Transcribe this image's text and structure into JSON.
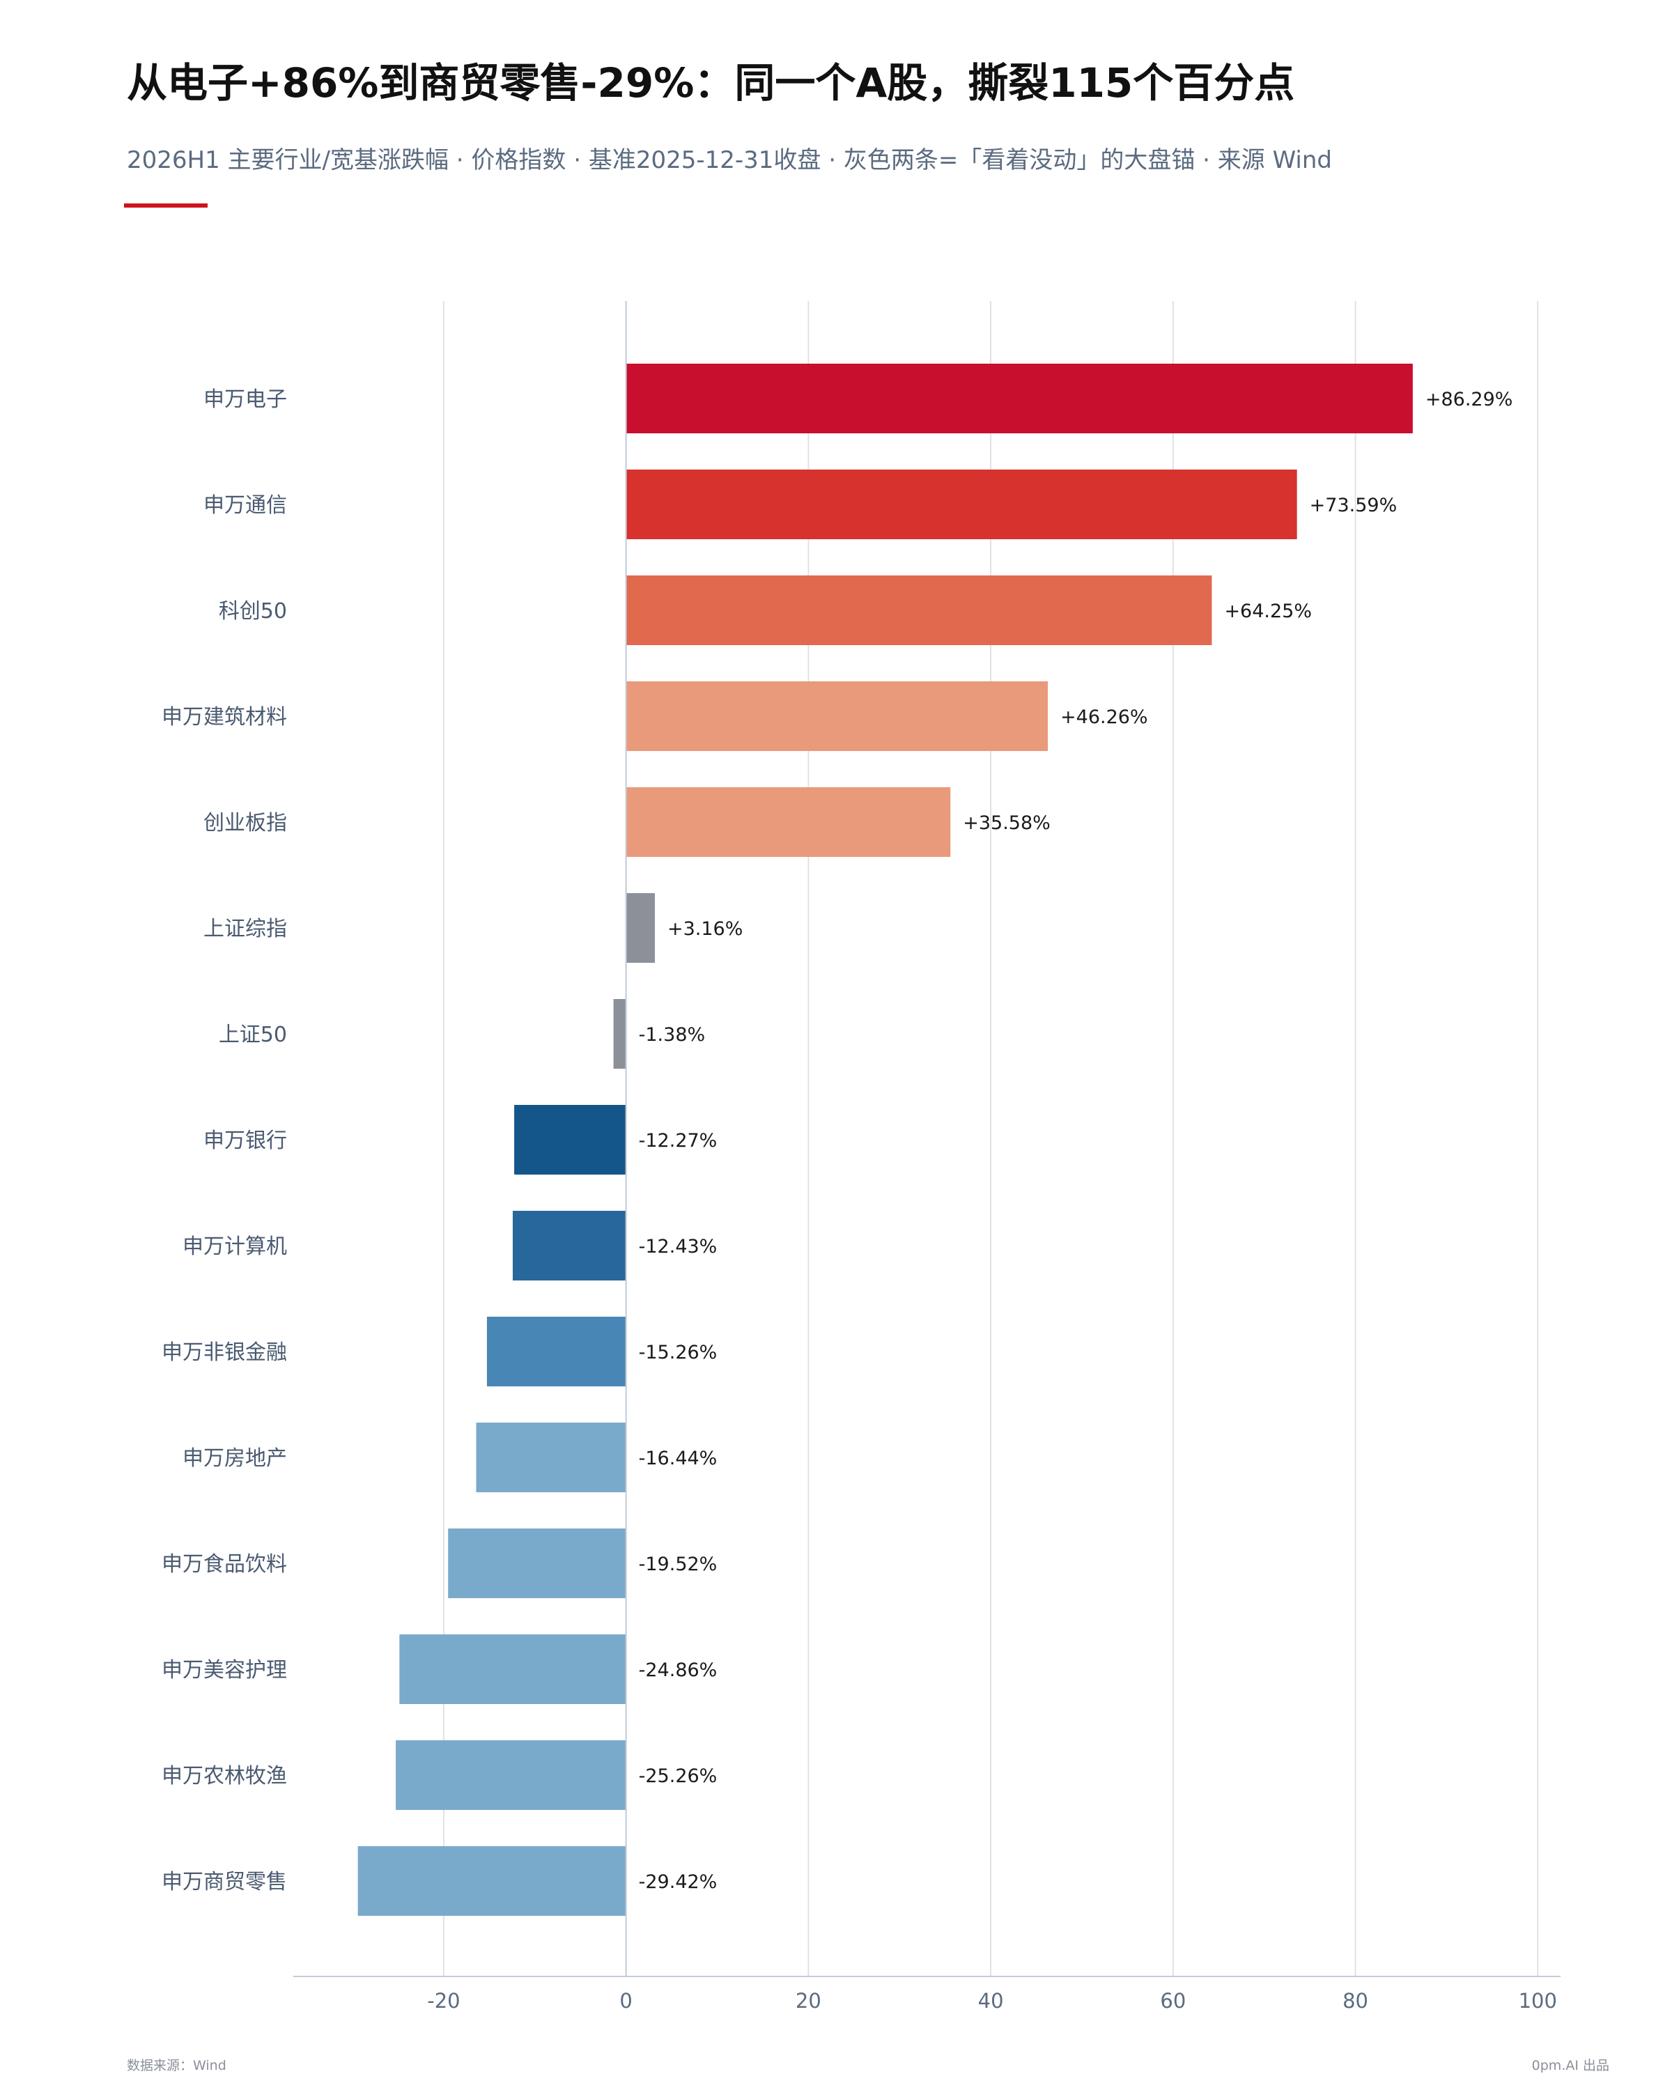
{
  "header": {
    "title": "从电子+86%到商贸零售-29%：同一个A股，撕裂115个百分点",
    "subtitle": "2026H1 主要行业/宽基涨跌幅 · 价格指数 · 基准2025-12-31收盘 · 灰色两条=「看着没动」的大盘锚 · 来源 Wind"
  },
  "footer": {
    "source": "数据来源：Wind",
    "credit": "0pm.AI 出品"
  },
  "colors": {
    "accent": "#d0121b",
    "grid": "#dde2e9",
    "axis": "#c5ccd6",
    "category_label": "#4a5a70",
    "tick_label": "#5b6b80",
    "value_label": "#1a1a1a"
  },
  "chart_data": {
    "type": "bar",
    "orientation": "horizontal",
    "categories": [
      "申万电子",
      "申万通信",
      "科创50",
      "申万建筑材料",
      "创业板指",
      "上证综指",
      "上证50",
      "申万银行",
      "申万计算机",
      "申万非银金融",
      "申万房地产",
      "申万食品饮料",
      "申万美容护理",
      "申万农林牧渔",
      "申万商贸零售"
    ],
    "values": [
      86.29,
      73.59,
      64.25,
      46.26,
      35.58,
      3.16,
      -1.38,
      -12.27,
      -12.43,
      -15.26,
      -16.44,
      -19.52,
      -24.86,
      -25.26,
      -29.42
    ],
    "value_labels": [
      "+86.29%",
      "+73.59%",
      "+64.25%",
      "+46.26%",
      "+35.58%",
      "+3.16%",
      "-1.38%",
      "-12.27%",
      "-12.43%",
      "-15.26%",
      "-16.44%",
      "-19.52%",
      "-24.86%",
      "-25.26%",
      "-29.42%"
    ],
    "bar_colors": [
      "#c8102e",
      "#d7322e",
      "#e0694e",
      "#e89a7a",
      "#e89a7a",
      "#8c9099",
      "#8c9099",
      "#15568a",
      "#28679b",
      "#4886b6",
      "#7aaacb",
      "#7aaacb",
      "#7aaacb",
      "#7aaacb",
      "#7aaacb"
    ],
    "xlim": [
      -36.5,
      102.5
    ],
    "xticks": [
      -20,
      0,
      20,
      40,
      60,
      80,
      100
    ],
    "xtick_labels": [
      "-20",
      "0",
      "20",
      "40",
      "60",
      "80",
      "100"
    ],
    "grid": true,
    "xlabel": "",
    "ylabel": ""
  }
}
